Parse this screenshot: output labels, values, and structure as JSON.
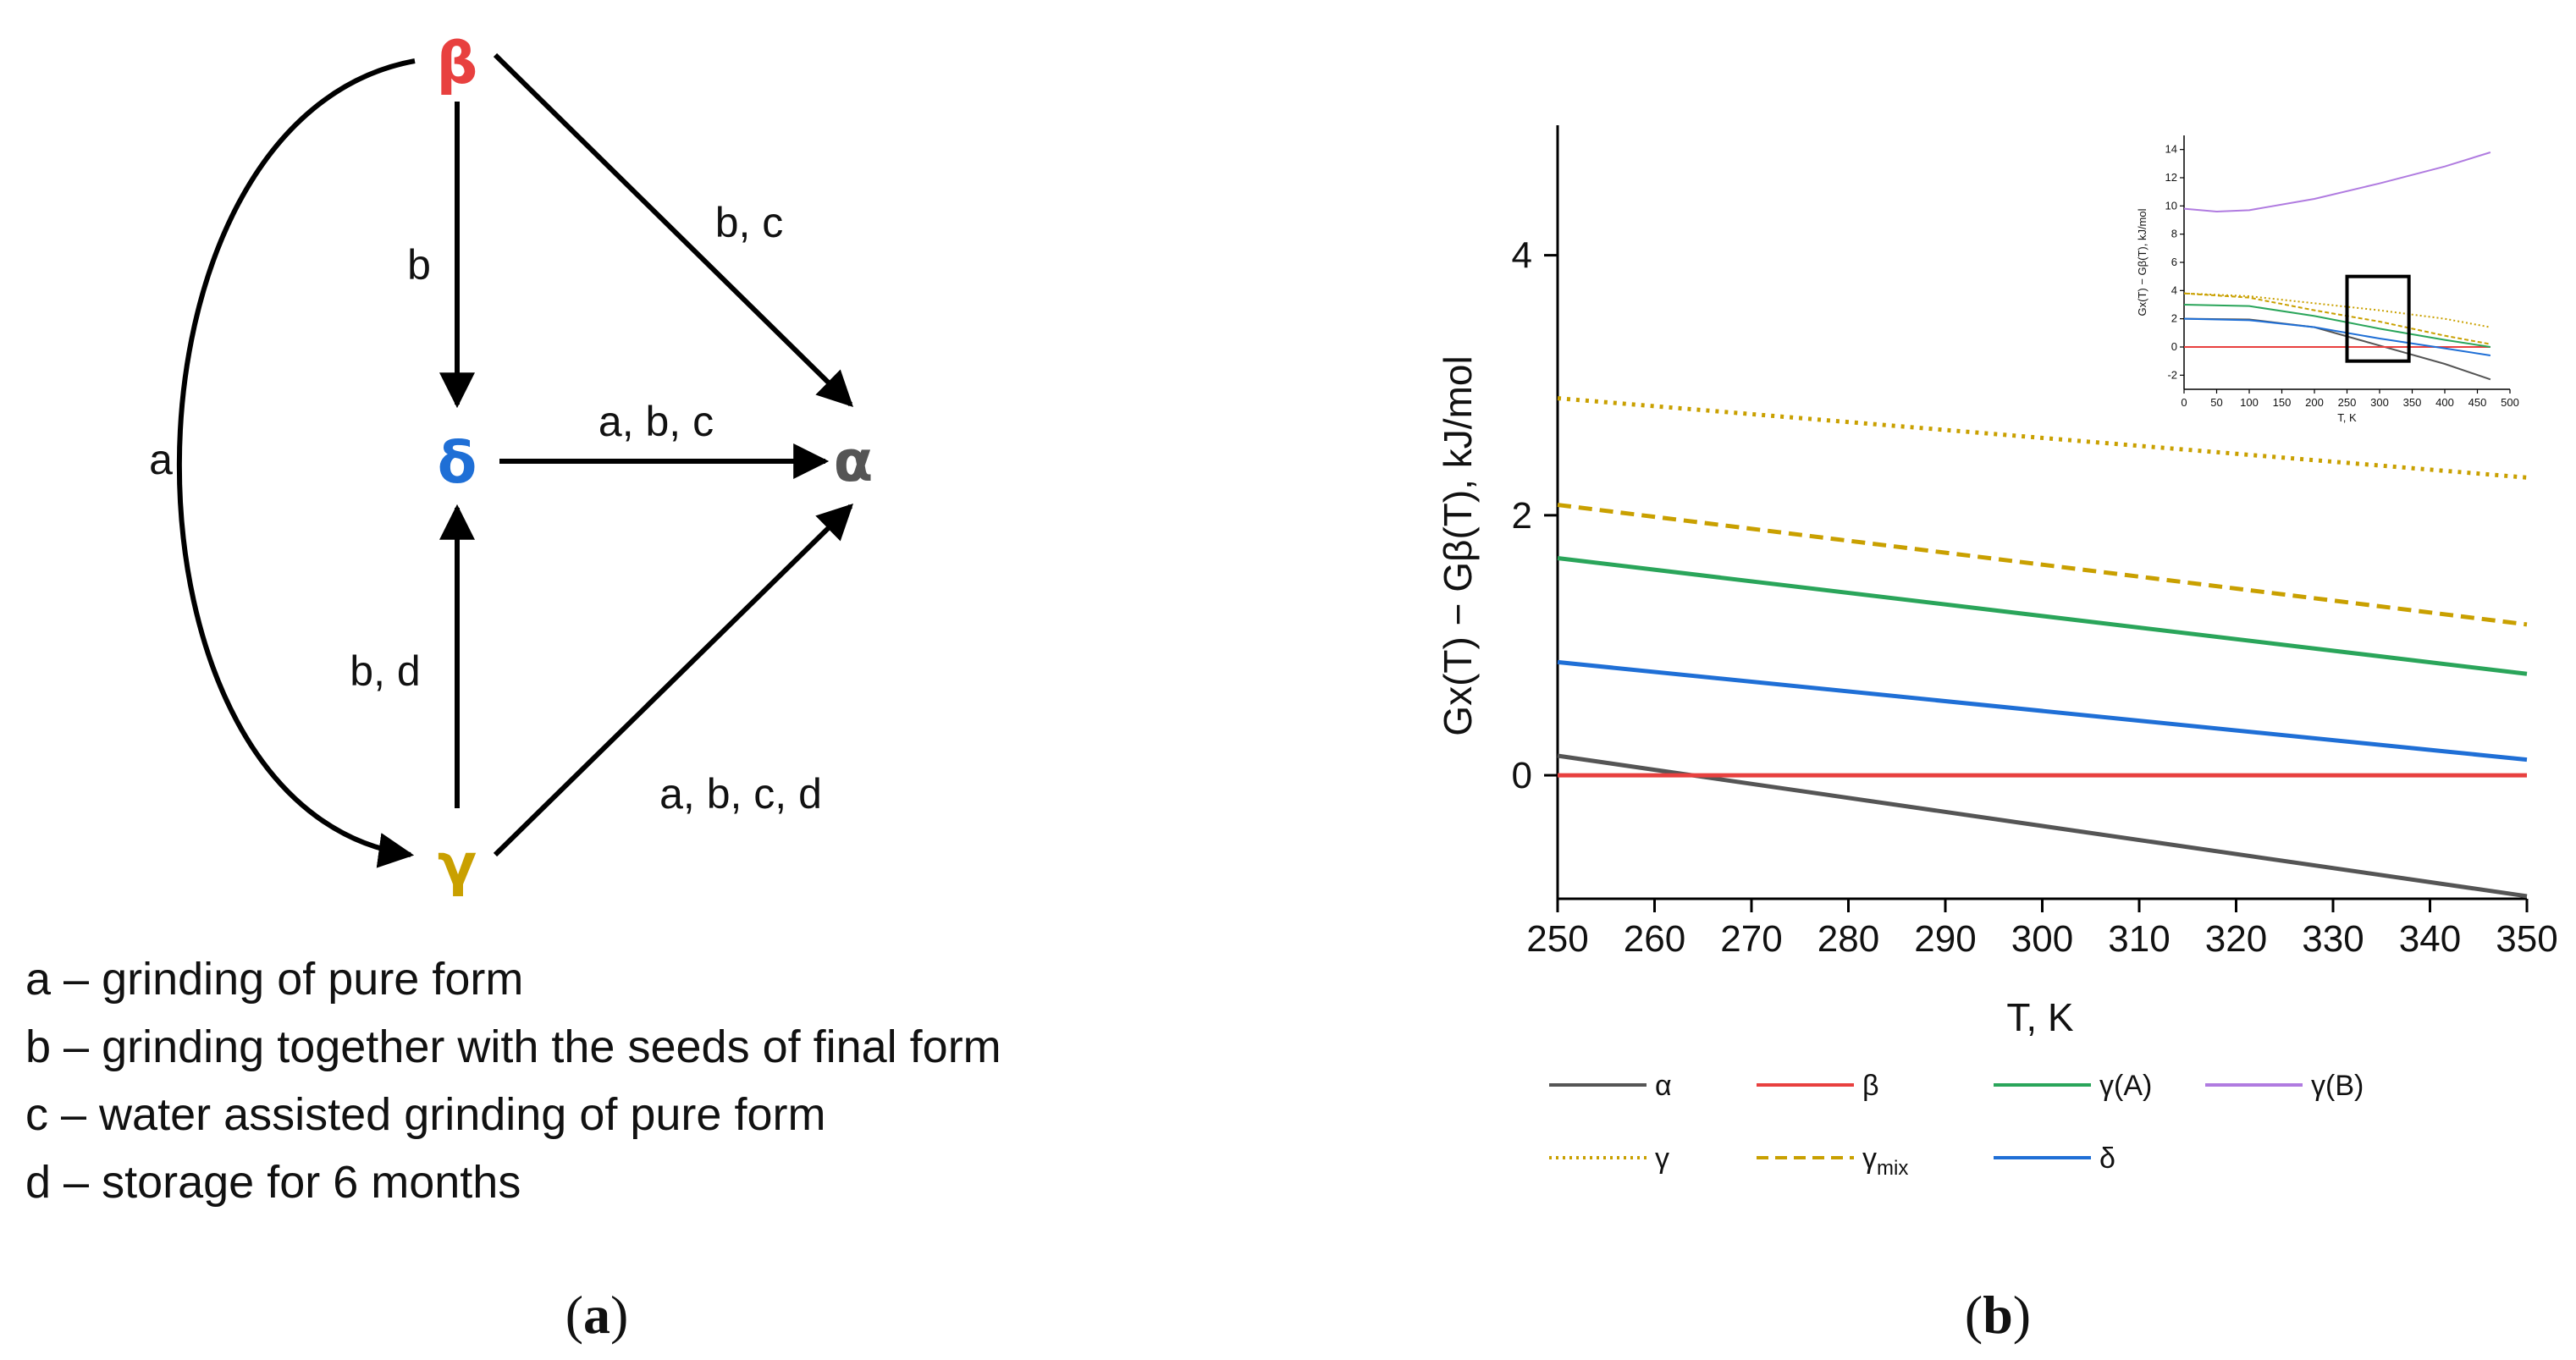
{
  "panel_a": {
    "label": "a",
    "nodes": {
      "beta": "β",
      "delta": "δ",
      "alpha": "α",
      "gamma": "γ"
    },
    "colors": {
      "beta": "#e8403f",
      "delta": "#1f6fd6",
      "alpha": "#555555",
      "gamma": "#c9a000"
    },
    "edges": {
      "beta_gamma": "a",
      "beta_delta": "b",
      "beta_alpha": "b, c",
      "delta_alpha": "a, b, c",
      "gamma_delta": "b, d",
      "gamma_alpha": "a, b, c, d"
    },
    "legend": [
      "a – grinding of pure form",
      "b – grinding together with the seeds of final form",
      "c – water assisted grinding of pure form",
      "d – storage for 6 months"
    ]
  },
  "panel_b": {
    "label": "b",
    "legend": {
      "alpha": "α",
      "beta": "β",
      "gammaA": "γ(A)",
      "gammaB": "γ(B)",
      "gamma": "γ",
      "gammamix_base": "γ",
      "gammamix_sub": "mix",
      "delta": "δ"
    }
  },
  "chart_data": [
    {
      "type": "line",
      "title": "",
      "xlabel": "T, K",
      "ylabel": "Gx(T) − Gβ(T), kJ/mol",
      "xlim": [
        250,
        350
      ],
      "ylim": [
        -0.95,
        5.0
      ],
      "xticks": [
        250,
        260,
        270,
        280,
        290,
        300,
        310,
        320,
        330,
        340,
        350
      ],
      "yticks": [
        0,
        2,
        4
      ],
      "x": [
        250,
        350
      ],
      "series": [
        {
          "name": "α",
          "values": [
            0.15,
            -0.93
          ],
          "color": "#555555",
          "style": "solid"
        },
        {
          "name": "β",
          "values": [
            0.0,
            0.0
          ],
          "color": "#e8403f",
          "style": "solid"
        },
        {
          "name": "γ(A)",
          "values": [
            1.67,
            0.78
          ],
          "color": "#2aa55a",
          "style": "solid"
        },
        {
          "name": "γ",
          "values": [
            2.9,
            2.29
          ],
          "color": "#c9a000",
          "style": "dotted"
        },
        {
          "name": "γmix",
          "values": [
            2.08,
            1.16
          ],
          "color": "#c9a000",
          "style": "dashed"
        },
        {
          "name": "δ",
          "values": [
            0.87,
            0.12
          ],
          "color": "#1f6fd6",
          "style": "solid"
        }
      ]
    },
    {
      "type": "line",
      "title": "inset",
      "xlabel": "T, K",
      "ylabel": "Gx(T) − Gβ(T), kJ/mol",
      "xlim": [
        0,
        500
      ],
      "ylim": [
        -3,
        15
      ],
      "xticks": [
        0,
        50,
        100,
        150,
        200,
        250,
        300,
        350,
        400,
        450,
        500
      ],
      "yticks": [
        -2,
        0,
        2,
        4,
        6,
        8,
        10,
        12,
        14
      ],
      "highlight_box": {
        "x": [
          250,
          345
        ],
        "y": [
          -1,
          5
        ]
      },
      "series": [
        {
          "name": "α",
          "x": [
            0,
            100,
            200,
            300,
            400,
            470
          ],
          "values": [
            2.0,
            1.95,
            1.4,
            0.1,
            -1.2,
            -2.3
          ],
          "color": "#555555",
          "style": "solid"
        },
        {
          "name": "β",
          "x": [
            0,
            470
          ],
          "values": [
            0,
            0
          ],
          "color": "#e8403f",
          "style": "solid"
        },
        {
          "name": "γ(A)",
          "x": [
            0,
            100,
            200,
            300,
            400,
            470
          ],
          "values": [
            3.0,
            2.9,
            2.2,
            1.3,
            0.5,
            0.0
          ],
          "color": "#2aa55a",
          "style": "solid"
        },
        {
          "name": "γ(B)",
          "x": [
            0,
            50,
            100,
            200,
            300,
            400,
            470
          ],
          "values": [
            9.8,
            9.6,
            9.7,
            10.5,
            11.6,
            12.8,
            13.8
          ],
          "color": "#b07be0",
          "style": "solid"
        },
        {
          "name": "γ",
          "x": [
            0,
            100,
            200,
            300,
            400,
            470
          ],
          "values": [
            3.8,
            3.6,
            3.1,
            2.6,
            2.0,
            1.4
          ],
          "color": "#c9a000",
          "style": "dotted"
        },
        {
          "name": "γmix",
          "x": [
            0,
            100,
            200,
            300,
            400,
            470
          ],
          "values": [
            3.8,
            3.5,
            2.6,
            1.8,
            0.8,
            0.2
          ],
          "color": "#c9a000",
          "style": "dashed"
        },
        {
          "name": "δ",
          "x": [
            0,
            100,
            200,
            300,
            400,
            470
          ],
          "values": [
            2.0,
            1.9,
            1.4,
            0.6,
            -0.1,
            -0.6
          ],
          "color": "#1f6fd6",
          "style": "solid"
        }
      ]
    }
  ]
}
